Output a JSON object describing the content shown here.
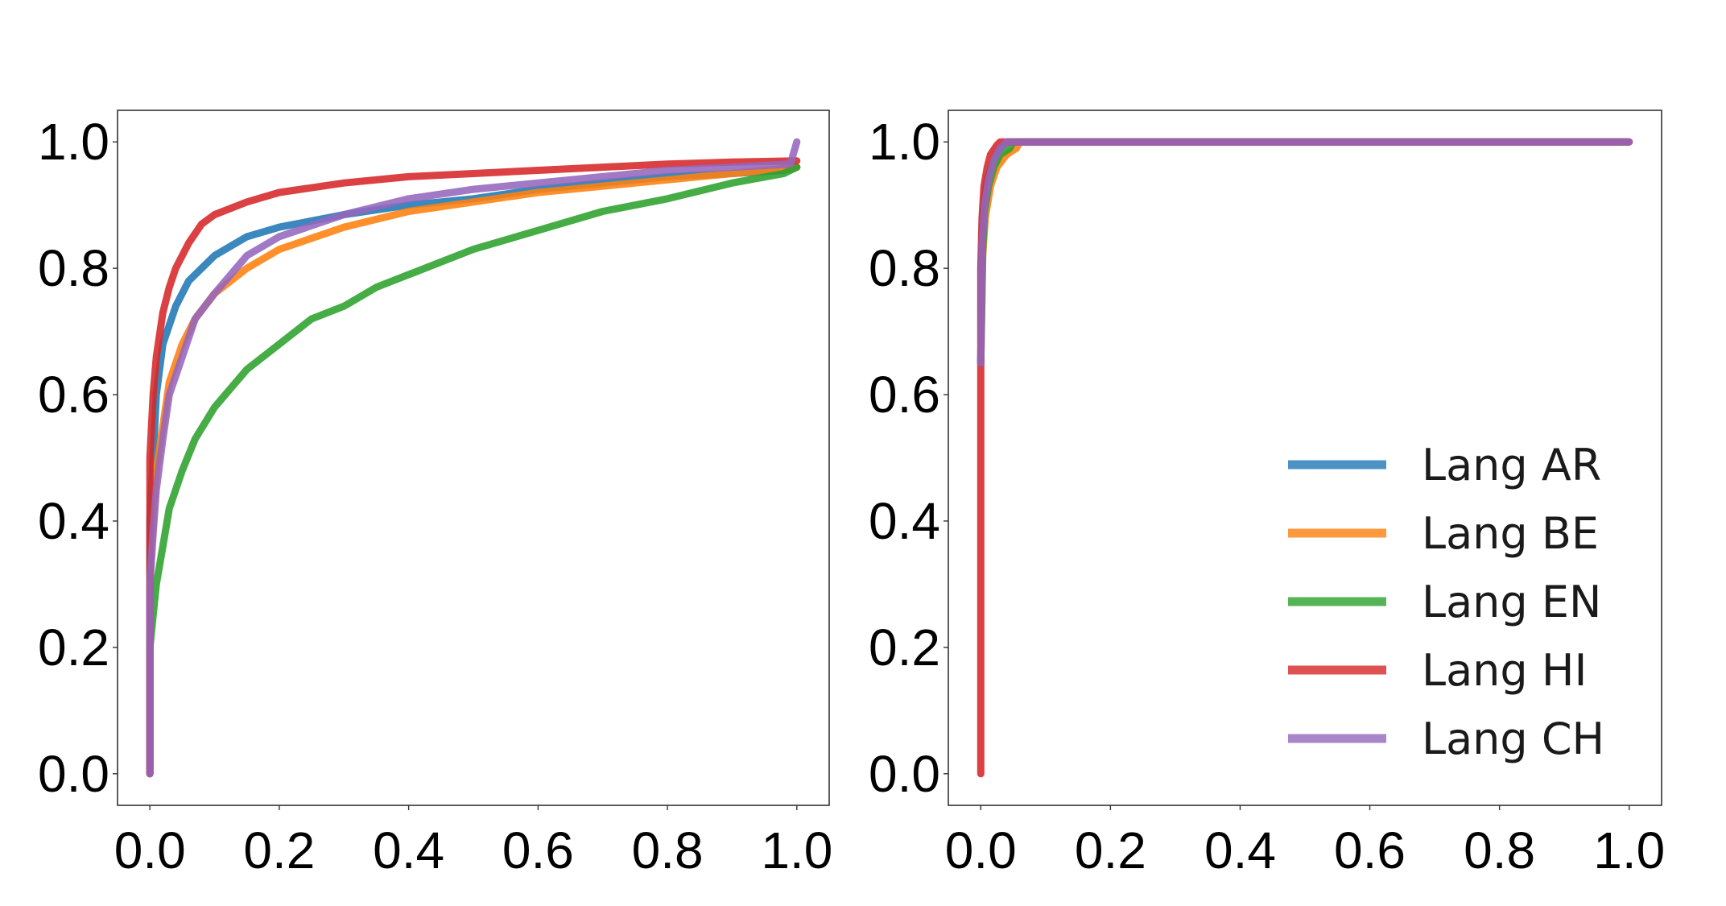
{
  "chart_data": [
    {
      "type": "line",
      "xlim": [
        -0.05,
        1.05
      ],
      "ylim": [
        -0.05,
        1.05
      ],
      "xticks": [
        "0.0",
        "0.2",
        "0.4",
        "0.6",
        "0.8",
        "1.0"
      ],
      "yticks": [
        "0.0",
        "0.2",
        "0.4",
        "0.6",
        "0.8",
        "1.0"
      ],
      "grid": false,
      "legend": false,
      "series": [
        {
          "name": "Lang AR",
          "color": "#1f77b4",
          "points": [
            [
              0.0,
              0.0
            ],
            [
              0.0,
              0.4
            ],
            [
              0.005,
              0.5
            ],
            [
              0.01,
              0.6
            ],
            [
              0.02,
              0.68
            ],
            [
              0.04,
              0.74
            ],
            [
              0.06,
              0.78
            ],
            [
              0.08,
              0.8
            ],
            [
              0.1,
              0.82
            ],
            [
              0.15,
              0.85
            ],
            [
              0.2,
              0.865
            ],
            [
              0.3,
              0.885
            ],
            [
              0.4,
              0.9
            ],
            [
              0.5,
              0.91
            ],
            [
              0.6,
              0.925
            ],
            [
              0.7,
              0.935
            ],
            [
              0.8,
              0.945
            ],
            [
              0.9,
              0.95
            ],
            [
              0.98,
              0.955
            ],
            [
              1.0,
              0.96
            ]
          ]
        },
        {
          "name": "Lang BE",
          "color": "#ff7f0e",
          "points": [
            [
              0.0,
              0.0
            ],
            [
              0.0,
              0.3
            ],
            [
              0.005,
              0.4
            ],
            [
              0.01,
              0.48
            ],
            [
              0.02,
              0.55
            ],
            [
              0.03,
              0.62
            ],
            [
              0.05,
              0.68
            ],
            [
              0.07,
              0.72
            ],
            [
              0.1,
              0.76
            ],
            [
              0.15,
              0.8
            ],
            [
              0.2,
              0.83
            ],
            [
              0.3,
              0.865
            ],
            [
              0.4,
              0.89
            ],
            [
              0.5,
              0.905
            ],
            [
              0.6,
              0.92
            ],
            [
              0.7,
              0.93
            ],
            [
              0.8,
              0.94
            ],
            [
              0.9,
              0.95
            ],
            [
              1.0,
              0.96
            ]
          ]
        },
        {
          "name": "Lang EN",
          "color": "#2ca02c",
          "points": [
            [
              0.0,
              0.0
            ],
            [
              0.0,
              0.2
            ],
            [
              0.005,
              0.25
            ],
            [
              0.01,
              0.3
            ],
            [
              0.02,
              0.36
            ],
            [
              0.03,
              0.42
            ],
            [
              0.05,
              0.48
            ],
            [
              0.07,
              0.53
            ],
            [
              0.1,
              0.58
            ],
            [
              0.15,
              0.64
            ],
            [
              0.2,
              0.68
            ],
            [
              0.25,
              0.72
            ],
            [
              0.3,
              0.74
            ],
            [
              0.35,
              0.77
            ],
            [
              0.4,
              0.79
            ],
            [
              0.5,
              0.83
            ],
            [
              0.6,
              0.86
            ],
            [
              0.7,
              0.89
            ],
            [
              0.8,
              0.91
            ],
            [
              0.9,
              0.935
            ],
            [
              0.98,
              0.95
            ],
            [
              1.0,
              0.96
            ]
          ]
        },
        {
          "name": "Lang HI",
          "color": "#d62728",
          "points": [
            [
              0.0,
              0.0
            ],
            [
              0.0,
              0.5
            ],
            [
              0.005,
              0.6
            ],
            [
              0.01,
              0.66
            ],
            [
              0.02,
              0.73
            ],
            [
              0.03,
              0.77
            ],
            [
              0.04,
              0.8
            ],
            [
              0.06,
              0.84
            ],
            [
              0.08,
              0.87
            ],
            [
              0.1,
              0.885
            ],
            [
              0.15,
              0.905
            ],
            [
              0.2,
              0.92
            ],
            [
              0.3,
              0.935
            ],
            [
              0.4,
              0.945
            ],
            [
              0.5,
              0.95
            ],
            [
              0.6,
              0.955
            ],
            [
              0.7,
              0.96
            ],
            [
              0.8,
              0.965
            ],
            [
              0.9,
              0.968
            ],
            [
              1.0,
              0.97
            ]
          ]
        },
        {
          "name": "Lang CH",
          "color": "#9467bd",
          "points": [
            [
              0.0,
              0.0
            ],
            [
              0.0,
              0.3
            ],
            [
              0.005,
              0.38
            ],
            [
              0.01,
              0.45
            ],
            [
              0.02,
              0.53
            ],
            [
              0.03,
              0.6
            ],
            [
              0.05,
              0.66
            ],
            [
              0.07,
              0.72
            ],
            [
              0.1,
              0.76
            ],
            [
              0.15,
              0.82
            ],
            [
              0.2,
              0.85
            ],
            [
              0.3,
              0.885
            ],
            [
              0.4,
              0.91
            ],
            [
              0.5,
              0.925
            ],
            [
              0.6,
              0.935
            ],
            [
              0.7,
              0.945
            ],
            [
              0.8,
              0.955
            ],
            [
              0.9,
              0.96
            ],
            [
              0.99,
              0.965
            ],
            [
              1.0,
              1.0
            ]
          ]
        }
      ]
    },
    {
      "type": "line",
      "xlim": [
        -0.05,
        1.05
      ],
      "ylim": [
        -0.05,
        1.05
      ],
      "xticks": [
        "0.0",
        "0.2",
        "0.4",
        "0.6",
        "0.8",
        "1.0"
      ],
      "yticks": [
        "0.0",
        "0.2",
        "0.4",
        "0.6",
        "0.8",
        "1.0"
      ],
      "grid": false,
      "legend": "lower-right",
      "legend_entries": [
        "Lang AR",
        "Lang BE",
        "Lang EN",
        "Lang HI",
        "Lang CH"
      ],
      "series": [
        {
          "name": "Lang AR",
          "color": "#1f77b4",
          "points": [
            [
              0.0,
              0.65
            ],
            [
              0.002,
              0.85
            ],
            [
              0.005,
              0.9
            ],
            [
              0.01,
              0.94
            ],
            [
              0.02,
              0.97
            ],
            [
              0.03,
              0.99
            ],
            [
              0.04,
              1.0
            ],
            [
              1.0,
              1.0
            ]
          ]
        },
        {
          "name": "Lang BE",
          "color": "#ff7f0e",
          "points": [
            [
              0.0,
              0.65
            ],
            [
              0.003,
              0.82
            ],
            [
              0.007,
              0.88
            ],
            [
              0.015,
              0.93
            ],
            [
              0.025,
              0.96
            ],
            [
              0.04,
              0.98
            ],
            [
              0.055,
              0.99
            ],
            [
              0.06,
              1.0
            ],
            [
              1.0,
              1.0
            ]
          ]
        },
        {
          "name": "Lang EN",
          "color": "#2ca02c",
          "points": [
            [
              0.0,
              0.65
            ],
            [
              0.003,
              0.83
            ],
            [
              0.006,
              0.89
            ],
            [
              0.012,
              0.93
            ],
            [
              0.02,
              0.96
            ],
            [
              0.03,
              0.98
            ],
            [
              0.045,
              0.99
            ],
            [
              0.05,
              1.0
            ],
            [
              1.0,
              1.0
            ]
          ]
        },
        {
          "name": "Lang HI",
          "color": "#d62728",
          "points": [
            [
              0.0,
              0.0
            ],
            [
              0.0,
              0.8
            ],
            [
              0.002,
              0.88
            ],
            [
              0.005,
              0.93
            ],
            [
              0.01,
              0.96
            ],
            [
              0.015,
              0.98
            ],
            [
              0.025,
              0.995
            ],
            [
              0.03,
              1.0
            ],
            [
              1.0,
              1.0
            ]
          ]
        },
        {
          "name": "Lang CH",
          "color": "#9467bd",
          "points": [
            [
              0.0,
              0.65
            ],
            [
              0.002,
              0.84
            ],
            [
              0.006,
              0.9
            ],
            [
              0.012,
              0.94
            ],
            [
              0.02,
              0.97
            ],
            [
              0.03,
              0.99
            ],
            [
              0.04,
              1.0
            ],
            [
              1.0,
              1.0
            ]
          ]
        }
      ]
    }
  ]
}
